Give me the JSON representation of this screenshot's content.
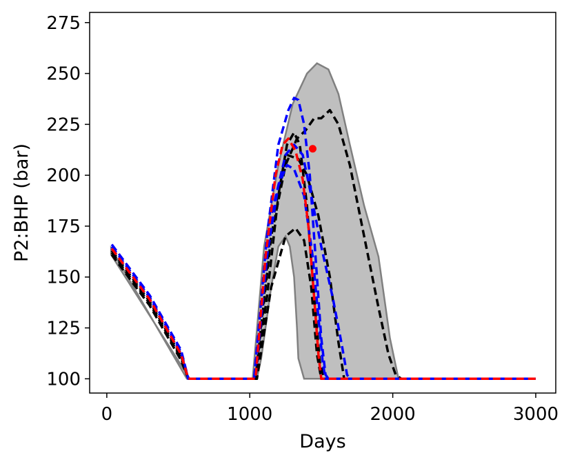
{
  "chart_data": {
    "type": "line",
    "title": "",
    "xlabel": "Days",
    "ylabel": "P2:BHP (bar)",
    "xlim": [
      -120,
      3140
    ],
    "ylim": [
      93,
      280
    ],
    "xticks": [
      0,
      1000,
      2000,
      3000
    ],
    "yticks": [
      100,
      125,
      150,
      175,
      200,
      225,
      250,
      275
    ],
    "xtick_labels": [
      "0",
      "1000",
      "2000",
      "3000"
    ],
    "ytick_labels": [
      "100",
      "125",
      "150",
      "175",
      "200",
      "225",
      "250",
      "275"
    ],
    "grid": false,
    "legend": "none",
    "envelope": {
      "color": "#bfbfbf",
      "edge_color": "#808080",
      "upper": [
        [
          30,
          164
        ],
        [
          560,
          100
        ],
        [
          1020,
          100
        ],
        [
          1100,
          165
        ],
        [
          1200,
          205
        ],
        [
          1300,
          235
        ],
        [
          1400,
          250
        ],
        [
          1470,
          255
        ],
        [
          1550,
          252
        ],
        [
          1620,
          240
        ],
        [
          1700,
          215
        ],
        [
          1800,
          185
        ],
        [
          1900,
          160
        ],
        [
          1980,
          120
        ],
        [
          2040,
          100
        ],
        [
          2100,
          100
        ]
      ],
      "lower": [
        [
          1380,
          100
        ],
        [
          1340,
          110
        ],
        [
          1330,
          125
        ],
        [
          1310,
          150
        ],
        [
          1280,
          165
        ],
        [
          1250,
          170
        ],
        [
          1200,
          165
        ],
        [
          1150,
          145
        ],
        [
          1100,
          120
        ],
        [
          1080,
          110
        ],
        [
          1050,
          100
        ],
        [
          580,
          100
        ],
        [
          30,
          161
        ]
      ]
    },
    "series": [
      {
        "color": "#000000",
        "values": [
          [
            35,
            162
          ],
          [
            300,
            137
          ],
          [
            520,
            110
          ],
          [
            570,
            100
          ],
          [
            1040,
            100
          ],
          [
            1120,
            140
          ],
          [
            1200,
            190
          ],
          [
            1260,
            215
          ],
          [
            1310,
            221
          ],
          [
            1350,
            215
          ],
          [
            1400,
            185
          ],
          [
            1450,
            140
          ],
          [
            1490,
            108
          ],
          [
            1520,
            100
          ],
          [
            3000,
            100
          ]
        ]
      },
      {
        "color": "#000000",
        "values": [
          [
            35,
            161
          ],
          [
            300,
            136
          ],
          [
            520,
            109
          ],
          [
            570,
            100
          ],
          [
            1050,
            100
          ],
          [
            1150,
            145
          ],
          [
            1250,
            170
          ],
          [
            1320,
            174
          ],
          [
            1380,
            168
          ],
          [
            1430,
            145
          ],
          [
            1470,
            112
          ],
          [
            1500,
            100
          ],
          [
            3000,
            100
          ]
        ]
      },
      {
        "color": "#000000",
        "values": [
          [
            35,
            163
          ],
          [
            300,
            138
          ],
          [
            520,
            111
          ],
          [
            570,
            100
          ],
          [
            1040,
            100
          ],
          [
            1150,
            170
          ],
          [
            1250,
            205
          ],
          [
            1330,
            218
          ],
          [
            1390,
            222
          ],
          [
            1450,
            228
          ],
          [
            1500,
            228
          ],
          [
            1560,
            232
          ],
          [
            1620,
            225
          ],
          [
            1700,
            205
          ],
          [
            1800,
            170
          ],
          [
            1900,
            135
          ],
          [
            1970,
            112
          ],
          [
            2020,
            102
          ],
          [
            2060,
            100
          ],
          [
            3000,
            100
          ]
        ]
      },
      {
        "color": "#000000",
        "values": [
          [
            35,
            164
          ],
          [
            300,
            139
          ],
          [
            520,
            112
          ],
          [
            570,
            100
          ],
          [
            1040,
            100
          ],
          [
            1150,
            175
          ],
          [
            1260,
            210
          ],
          [
            1340,
            208
          ],
          [
            1400,
            200
          ],
          [
            1480,
            180
          ],
          [
            1560,
            150
          ],
          [
            1620,
            118
          ],
          [
            1660,
            100
          ],
          [
            3000,
            100
          ]
        ]
      },
      {
        "color": "#0000ff",
        "values": [
          [
            35,
            166
          ],
          [
            300,
            141
          ],
          [
            520,
            114
          ],
          [
            570,
            100
          ],
          [
            1030,
            100
          ],
          [
            1120,
            170
          ],
          [
            1200,
            215
          ],
          [
            1270,
            232
          ],
          [
            1310,
            238
          ],
          [
            1340,
            237
          ],
          [
            1380,
            225
          ],
          [
            1420,
            200
          ],
          [
            1460,
            160
          ],
          [
            1500,
            120
          ],
          [
            1530,
            102
          ],
          [
            1550,
            100
          ],
          [
            3000,
            100
          ]
        ]
      },
      {
        "color": "#0000ff",
        "values": [
          [
            35,
            165
          ],
          [
            300,
            140
          ],
          [
            520,
            113
          ],
          [
            570,
            100
          ],
          [
            1030,
            100
          ],
          [
            1150,
            180
          ],
          [
            1250,
            210
          ],
          [
            1310,
            215
          ],
          [
            1370,
            210
          ],
          [
            1430,
            190
          ],
          [
            1500,
            165
          ],
          [
            1580,
            140
          ],
          [
            1640,
            118
          ],
          [
            1680,
            102
          ],
          [
            1700,
            100
          ],
          [
            3000,
            100
          ]
        ]
      },
      {
        "color": "#0000ff",
        "values": [
          [
            35,
            164
          ],
          [
            300,
            139
          ],
          [
            520,
            112
          ],
          [
            570,
            100
          ],
          [
            1040,
            100
          ],
          [
            1120,
            160
          ],
          [
            1200,
            195
          ],
          [
            1260,
            205
          ],
          [
            1310,
            203
          ],
          [
            1380,
            190
          ],
          [
            1440,
            160
          ],
          [
            1480,
            130
          ],
          [
            1510,
            108
          ],
          [
            1530,
            100
          ],
          [
            3000,
            100
          ]
        ]
      },
      {
        "color": "#ff0000",
        "values": [
          [
            35,
            164
          ],
          [
            300,
            139
          ],
          [
            520,
            112
          ],
          [
            570,
            100
          ],
          [
            1040,
            100
          ],
          [
            1110,
            160
          ],
          [
            1180,
            200
          ],
          [
            1230,
            215
          ],
          [
            1270,
            218
          ],
          [
            1320,
            212
          ],
          [
            1370,
            198
          ],
          [
            1410,
            175
          ],
          [
            1450,
            140
          ],
          [
            1480,
            112
          ],
          [
            1500,
            100
          ],
          [
            3000,
            100
          ]
        ]
      }
    ],
    "observation": {
      "color": "#ff0000",
      "x": 1440,
      "y": 213
    }
  }
}
